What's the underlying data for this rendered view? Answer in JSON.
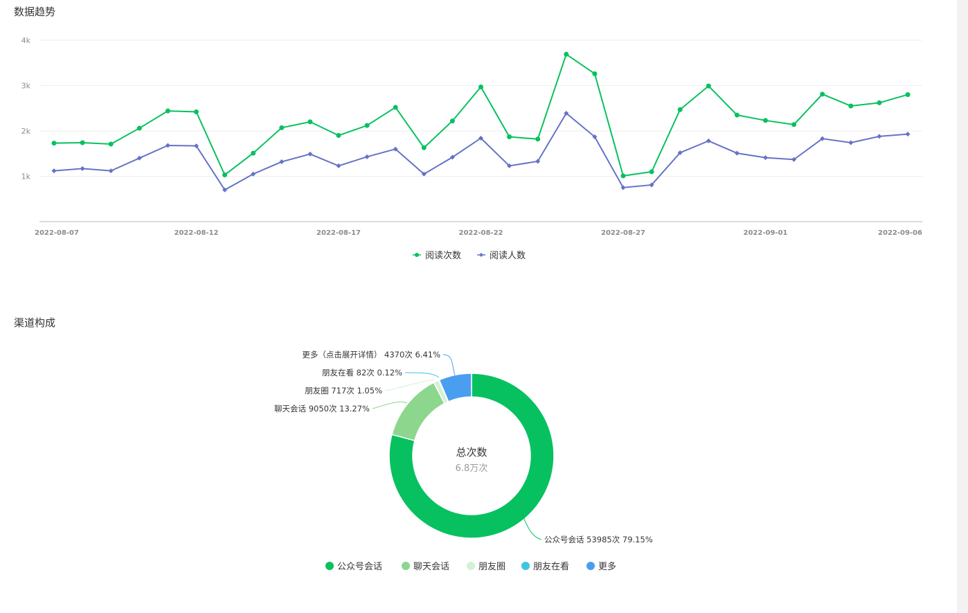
{
  "sections": {
    "trend_title": "数据趋势",
    "channel_title": "渠道构成"
  },
  "chart_data": [
    {
      "type": "line",
      "y_ticks": [
        "1k",
        "2k",
        "3k",
        "4k"
      ],
      "ylim": [
        0,
        4000
      ],
      "grid": true,
      "legend_position": "bottom-center",
      "x": [
        "2022-08-07",
        "2022-08-08",
        "2022-08-09",
        "2022-08-10",
        "2022-08-11",
        "2022-08-12",
        "2022-08-13",
        "2022-08-14",
        "2022-08-15",
        "2022-08-16",
        "2022-08-17",
        "2022-08-18",
        "2022-08-19",
        "2022-08-20",
        "2022-08-21",
        "2022-08-22",
        "2022-08-23",
        "2022-08-24",
        "2022-08-25",
        "2022-08-26",
        "2022-08-27",
        "2022-08-28",
        "2022-08-29",
        "2022-08-30",
        "2022-08-31",
        "2022-09-01",
        "2022-09-02",
        "2022-09-03",
        "2022-09-04",
        "2022-09-05",
        "2022-09-06"
      ],
      "x_tick_labels": [
        "2022-08-07",
        "2022-08-12",
        "2022-08-17",
        "2022-08-22",
        "2022-08-27",
        "2022-09-01",
        "2022-09-06"
      ],
      "series": [
        {
          "name": "阅读次数",
          "color": "#07c160",
          "marker": "circle",
          "values": [
            1730,
            1740,
            1710,
            2060,
            2440,
            2420,
            1030,
            1510,
            2070,
            2200,
            1900,
            2120,
            2520,
            1630,
            2220,
            2970,
            1870,
            1820,
            3690,
            3260,
            1010,
            1100,
            2470,
            2990,
            2350,
            2230,
            2140,
            2810,
            2550,
            2620,
            2800
          ]
        },
        {
          "name": "阅读人数",
          "color": "#6572c7",
          "marker": "diamond",
          "values": [
            1120,
            1170,
            1120,
            1400,
            1680,
            1670,
            700,
            1050,
            1320,
            1490,
            1230,
            1430,
            1600,
            1050,
            1420,
            1840,
            1230,
            1330,
            2390,
            1870,
            750,
            810,
            1520,
            1780,
            1510,
            1410,
            1370,
            1830,
            1740,
            1880,
            1930
          ]
        }
      ]
    },
    {
      "type": "pie",
      "donut": true,
      "center_title": "总次数",
      "center_value": "6.8万次",
      "legend_position": "bottom-center",
      "slices": [
        {
          "name": "公众号会话",
          "count": 53985,
          "percent": 79.15,
          "label": "公众号会话 53985次 79.15%",
          "color": "#07c160"
        },
        {
          "name": "聊天会话",
          "count": 9050,
          "percent": 13.27,
          "label": "聊天会话 9050次 13.27%",
          "color": "#8cd68e"
        },
        {
          "name": "朋友圈",
          "count": 717,
          "percent": 1.05,
          "label": "朋友圈 717次 1.05%",
          "color": "#d3f1d5"
        },
        {
          "name": "朋友在看",
          "count": 82,
          "percent": 0.12,
          "label": "朋友在看 82次 0.12%",
          "color": "#3ec6e0"
        },
        {
          "name": "更多",
          "count": 4370,
          "percent": 6.41,
          "label": "更多（点击展开详情） 4370次 6.41%",
          "color": "#4a9ef0"
        }
      ]
    }
  ]
}
